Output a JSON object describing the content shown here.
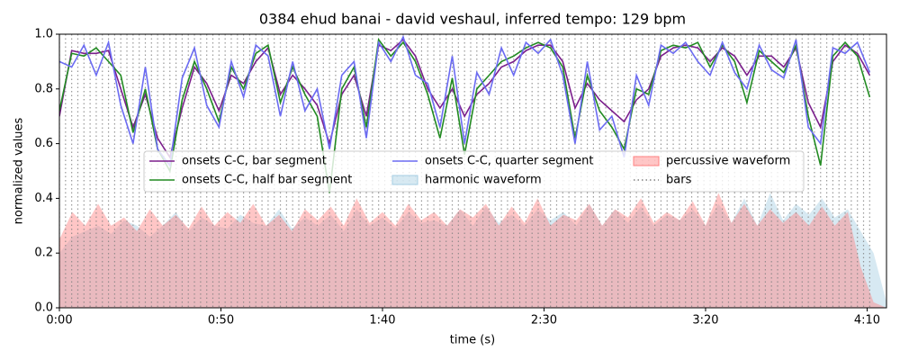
{
  "chart_data": {
    "type": "line",
    "title": "0384 ehud banai - david veshaul, inferred tempo: 129 bpm",
    "xlabel": "time (s)",
    "ylabel": "normalized values",
    "xlim": [
      0,
      256
    ],
    "ylim": [
      0,
      1
    ],
    "xticks": [
      {
        "value": 0,
        "label": "0:00"
      },
      {
        "value": 50,
        "label": "0:50"
      },
      {
        "value": 100,
        "label": "1:40"
      },
      {
        "value": 150,
        "label": "2:30"
      },
      {
        "value": 200,
        "label": "3:20"
      },
      {
        "value": 250,
        "label": "4:10"
      }
    ],
    "yticks": [
      {
        "value": 0,
        "label": "0.0"
      },
      {
        "value": 0.2,
        "label": "0.2"
      },
      {
        "value": 0.4,
        "label": "0.4"
      },
      {
        "value": 0.6,
        "label": "0.6"
      },
      {
        "value": 0.8,
        "label": "0.8"
      },
      {
        "value": 1,
        "label": "1.0"
      }
    ],
    "legend_columns": 3,
    "series": [
      {
        "name": "onsets C-C, bar segment",
        "kind": "line",
        "color": "#7b1f8c",
        "x": [
          0,
          3.8,
          7.6,
          11.4,
          15.2,
          19,
          22.8,
          26.6,
          30.4,
          34.2,
          38,
          41.8,
          45.6,
          49.4,
          53.2,
          57,
          60.8,
          64.6,
          68.4,
          72.2,
          76,
          79.8,
          83.6,
          87.4,
          91.2,
          95,
          98.8,
          102.6,
          106.4,
          110.2,
          114,
          117.8,
          121.6,
          125.4,
          129.2,
          133,
          136.8,
          140.6,
          144.4,
          148.2,
          152,
          155.8,
          159.6,
          163.4,
          167.2,
          171,
          174.8,
          178.6,
          182.4,
          186.2,
          190,
          193.8,
          197.6,
          201.4,
          205.2,
          209,
          212.8,
          216.6,
          220.4,
          224.2,
          228,
          231.8,
          235.6,
          239.4,
          243.2,
          247,
          250.8
        ],
        "values": [
          0.7,
          0.94,
          0.93,
          0.93,
          0.94,
          0.8,
          0.66,
          0.78,
          0.62,
          0.55,
          0.73,
          0.88,
          0.82,
          0.72,
          0.85,
          0.82,
          0.9,
          0.95,
          0.78,
          0.85,
          0.8,
          0.74,
          0.6,
          0.78,
          0.85,
          0.7,
          0.96,
          0.94,
          0.98,
          0.92,
          0.8,
          0.73,
          0.8,
          0.7,
          0.78,
          0.82,
          0.88,
          0.9,
          0.94,
          0.96,
          0.96,
          0.9,
          0.73,
          0.82,
          0.76,
          0.72,
          0.68,
          0.76,
          0.8,
          0.92,
          0.95,
          0.96,
          0.95,
          0.9,
          0.95,
          0.92,
          0.85,
          0.92,
          0.92,
          0.88,
          0.95,
          0.75,
          0.66,
          0.9,
          0.96,
          0.93,
          0.85
        ]
      },
      {
        "name": "onsets C-C, half bar segment",
        "kind": "line",
        "color": "#228b22",
        "x": [
          0,
          3.8,
          7.6,
          11.4,
          15.2,
          19,
          22.8,
          26.6,
          30.4,
          34.2,
          38,
          41.8,
          45.6,
          49.4,
          53.2,
          57,
          60.8,
          64.6,
          68.4,
          72.2,
          76,
          79.8,
          83.6,
          87.4,
          91.2,
          95,
          98.8,
          102.6,
          106.4,
          110.2,
          114,
          117.8,
          121.6,
          125.4,
          129.2,
          133,
          136.8,
          140.6,
          144.4,
          148.2,
          152,
          155.8,
          159.6,
          163.4,
          167.2,
          171,
          174.8,
          178.6,
          182.4,
          186.2,
          190,
          193.8,
          197.6,
          201.4,
          205.2,
          209,
          212.8,
          216.6,
          220.4,
          224.2,
          228,
          231.8,
          235.6,
          239.4,
          243.2,
          247,
          250.8
        ],
        "values": [
          0.72,
          0.93,
          0.92,
          0.95,
          0.9,
          0.85,
          0.64,
          0.8,
          0.58,
          0.5,
          0.76,
          0.9,
          0.8,
          0.68,
          0.88,
          0.8,
          0.93,
          0.96,
          0.75,
          0.88,
          0.78,
          0.7,
          0.42,
          0.8,
          0.88,
          0.66,
          0.98,
          0.92,
          0.97,
          0.9,
          0.78,
          0.62,
          0.84,
          0.56,
          0.8,
          0.85,
          0.9,
          0.92,
          0.95,
          0.97,
          0.95,
          0.88,
          0.62,
          0.85,
          0.72,
          0.66,
          0.58,
          0.8,
          0.78,
          0.94,
          0.96,
          0.95,
          0.97,
          0.88,
          0.96,
          0.9,
          0.75,
          0.94,
          0.9,
          0.86,
          0.96,
          0.7,
          0.52,
          0.92,
          0.97,
          0.92,
          0.77
        ]
      },
      {
        "name": "onsets C-C, quarter segment",
        "kind": "line",
        "color": "#6b6bf2",
        "x": [
          0,
          3.8,
          7.6,
          11.4,
          15.2,
          19,
          22.8,
          26.6,
          30.4,
          34.2,
          38,
          41.8,
          45.6,
          49.4,
          53.2,
          57,
          60.8,
          64.6,
          68.4,
          72.2,
          76,
          79.8,
          83.6,
          87.4,
          91.2,
          95,
          98.8,
          102.6,
          106.4,
          110.2,
          114,
          117.8,
          121.6,
          125.4,
          129.2,
          133,
          136.8,
          140.6,
          144.4,
          148.2,
          152,
          155.8,
          159.6,
          163.4,
          167.2,
          171,
          174.8,
          178.6,
          182.4,
          186.2,
          190,
          193.8,
          197.6,
          201.4,
          205.2,
          209,
          212.8,
          216.6,
          220.4,
          224.2,
          228,
          231.8,
          235.6,
          239.4,
          243.2,
          247,
          250.8
        ],
        "values": [
          0.9,
          0.88,
          0.96,
          0.85,
          0.97,
          0.74,
          0.6,
          0.88,
          0.58,
          0.52,
          0.84,
          0.95,
          0.74,
          0.66,
          0.9,
          0.77,
          0.96,
          0.92,
          0.7,
          0.9,
          0.72,
          0.8,
          0.58,
          0.85,
          0.9,
          0.62,
          0.97,
          0.9,
          0.99,
          0.85,
          0.82,
          0.66,
          0.92,
          0.6,
          0.86,
          0.78,
          0.95,
          0.85,
          0.97,
          0.93,
          0.98,
          0.85,
          0.6,
          0.9,
          0.65,
          0.7,
          0.55,
          0.85,
          0.74,
          0.96,
          0.93,
          0.97,
          0.9,
          0.85,
          0.97,
          0.86,
          0.8,
          0.96,
          0.87,
          0.84,
          0.98,
          0.66,
          0.6,
          0.95,
          0.93,
          0.97,
          0.86
        ]
      },
      {
        "name": "harmonic waveform",
        "kind": "area",
        "color": "#a6cee3",
        "x": [
          0,
          4,
          8,
          12,
          16,
          20,
          24,
          28,
          32,
          36,
          40,
          44,
          48,
          52,
          56,
          60,
          64,
          68,
          72,
          76,
          80,
          84,
          88,
          92,
          96,
          100,
          104,
          108,
          112,
          116,
          120,
          124,
          128,
          132,
          136,
          140,
          144,
          148,
          152,
          156,
          160,
          164,
          168,
          172,
          176,
          180,
          184,
          188,
          192,
          196,
          200,
          204,
          208,
          212,
          216,
          220,
          224,
          228,
          232,
          236,
          240,
          244,
          248,
          252,
          256
        ],
        "values": [
          0.2,
          0.26,
          0.28,
          0.3,
          0.27,
          0.32,
          0.3,
          0.26,
          0.3,
          0.35,
          0.28,
          0.33,
          0.3,
          0.29,
          0.34,
          0.31,
          0.3,
          0.36,
          0.29,
          0.33,
          0.3,
          0.34,
          0.28,
          0.36,
          0.3,
          0.33,
          0.29,
          0.35,
          0.31,
          0.32,
          0.3,
          0.36,
          0.3,
          0.37,
          0.31,
          0.34,
          0.3,
          0.36,
          0.32,
          0.35,
          0.3,
          0.38,
          0.3,
          0.36,
          0.31,
          0.37,
          0.3,
          0.34,
          0.32,
          0.36,
          0.3,
          0.38,
          0.31,
          0.4,
          0.3,
          0.42,
          0.32,
          0.38,
          0.34,
          0.4,
          0.33,
          0.36,
          0.28,
          0.2,
          0.02
        ]
      },
      {
        "name": "percussive waveform",
        "kind": "area",
        "color": "#ff8080",
        "x": [
          0,
          4,
          8,
          12,
          16,
          20,
          24,
          28,
          32,
          36,
          40,
          44,
          48,
          52,
          56,
          60,
          64,
          68,
          72,
          76,
          80,
          84,
          88,
          92,
          96,
          100,
          104,
          108,
          112,
          116,
          120,
          124,
          128,
          132,
          136,
          140,
          144,
          148,
          152,
          156,
          160,
          164,
          168,
          172,
          176,
          180,
          184,
          188,
          192,
          196,
          200,
          204,
          208,
          212,
          216,
          220,
          224,
          228,
          232,
          236,
          240,
          244,
          248,
          252,
          256
        ],
        "values": [
          0.25,
          0.35,
          0.3,
          0.38,
          0.3,
          0.33,
          0.28,
          0.36,
          0.3,
          0.34,
          0.29,
          0.37,
          0.3,
          0.35,
          0.31,
          0.38,
          0.3,
          0.34,
          0.28,
          0.36,
          0.32,
          0.37,
          0.3,
          0.4,
          0.31,
          0.35,
          0.3,
          0.38,
          0.32,
          0.35,
          0.3,
          0.36,
          0.33,
          0.38,
          0.3,
          0.37,
          0.31,
          0.4,
          0.3,
          0.34,
          0.32,
          0.38,
          0.3,
          0.36,
          0.33,
          0.4,
          0.31,
          0.35,
          0.32,
          0.39,
          0.3,
          0.42,
          0.31,
          0.38,
          0.3,
          0.36,
          0.31,
          0.35,
          0.3,
          0.37,
          0.3,
          0.35,
          0.15,
          0.02,
          0
        ]
      },
      {
        "name": "bars",
        "kind": "vlines",
        "color": "#808080",
        "x": [
          0,
          1.9,
          3.8,
          5.7,
          7.6,
          9.5,
          11.4,
          13.3,
          15.2,
          17.1,
          19,
          20.9,
          22.8,
          24.7,
          26.6,
          28.5,
          30.4,
          32.3,
          34.2,
          36.1,
          38,
          39.9,
          41.8,
          43.7,
          45.6,
          47.5,
          49.4,
          51.3,
          53.2,
          55.1,
          57,
          58.9,
          60.8,
          62.7,
          64.6,
          66.5,
          68.4,
          70.3,
          72.2,
          74.1,
          76,
          77.9,
          79.8,
          81.7,
          83.6,
          85.5,
          87.4,
          89.3,
          91.2,
          93.1,
          95,
          96.9,
          98.8,
          100.7,
          102.6,
          104.5,
          106.4,
          108.3,
          110.2,
          112.1,
          114,
          115.9,
          117.8,
          119.7,
          121.6,
          123.5,
          125.4,
          127.3,
          129.2,
          131.1,
          133,
          134.9,
          136.8,
          138.7,
          140.6,
          142.5,
          144.4,
          146.3,
          148.2,
          150.1,
          152,
          153.9,
          155.8,
          157.7,
          159.6,
          161.5,
          163.4,
          165.3,
          167.2,
          169.1,
          171,
          172.9,
          174.8,
          176.7,
          178.6,
          180.5,
          182.4,
          184.3,
          186.2,
          188.1,
          190,
          191.9,
          193.8,
          195.7,
          197.6,
          199.5,
          201.4,
          203.3,
          205.2,
          207.1,
          209,
          210.9,
          212.8,
          214.7,
          216.6,
          218.5,
          220.4,
          222.3,
          224.2,
          226.1,
          228,
          229.9,
          231.8,
          233.7,
          235.6,
          237.5,
          239.4,
          241.3,
          243.2,
          245.1,
          247,
          248.9,
          250.8
        ]
      }
    ]
  }
}
